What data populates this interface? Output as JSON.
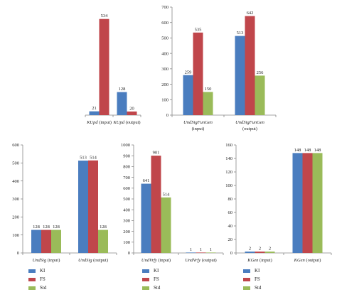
{
  "colors": {
    "KI": "#4a7dbf",
    "FS": "#c0464b",
    "Std": "#9abb59"
  },
  "legend_labels": [
    "KI",
    "FS",
    "Std"
  ],
  "chart_data": [
    {
      "type": "bar",
      "title": "",
      "ylim": [
        0,
        600
      ],
      "yticks": [],
      "show_y_axis": false,
      "categories": [
        {
          "parts": [
            {
              "t": "KUpd",
              "i": true
            },
            {
              "t": " (input)",
              "i": false
            }
          ]
        },
        {
          "parts": [
            {
              "t": "KUpd",
              "i": true
            },
            {
              "t": " (output)",
              "i": false
            }
          ]
        }
      ],
      "series": [
        {
          "name": "KI",
          "values": [
            21,
            128
          ]
        },
        {
          "name": "FS",
          "values": [
            534,
            20
          ]
        }
      ]
    },
    {
      "type": "bar",
      "title": "",
      "ylim": [
        0,
        700
      ],
      "yticks": [
        0,
        100,
        200,
        300,
        400,
        500,
        600,
        700
      ],
      "show_y_axis": true,
      "categories": [
        {
          "parts": [
            {
              "t": "UndSigFunGen",
              "i": true
            }
          ],
          "line2": "(input)"
        },
        {
          "parts": [
            {
              "t": "UndSigFunGen",
              "i": true
            }
          ],
          "line2": "(output)"
        }
      ],
      "series": [
        {
          "name": "KI",
          "values": [
            259,
            513
          ]
        },
        {
          "name": "FS",
          "values": [
            535,
            642
          ]
        },
        {
          "name": "Std",
          "values": [
            150,
            256
          ]
        }
      ]
    },
    {
      "type": "bar",
      "title": "",
      "ylim": [
        0,
        600
      ],
      "yticks": [
        0,
        100,
        200,
        300,
        400,
        500,
        600
      ],
      "show_y_axis": true,
      "categories": [
        {
          "parts": [
            {
              "t": "UndSig",
              "i": true
            },
            {
              "t": " (input)",
              "i": false
            }
          ]
        },
        {
          "parts": [
            {
              "t": "UndSig",
              "i": true
            },
            {
              "t": " (output)",
              "i": false
            }
          ]
        }
      ],
      "series": [
        {
          "name": "KI",
          "values": [
            128,
            513
          ]
        },
        {
          "name": "FS",
          "values": [
            128,
            514
          ]
        },
        {
          "name": "Std",
          "values": [
            128,
            128
          ]
        }
      ]
    },
    {
      "type": "bar",
      "title": "",
      "ylim": [
        0,
        1000
      ],
      "yticks": [
        0,
        100,
        200,
        300,
        400,
        500,
        600,
        700,
        800,
        900,
        1000
      ],
      "show_y_axis": true,
      "categories": [
        {
          "parts": [
            {
              "t": "UndVrfy",
              "i": true
            },
            {
              "t": " (input)",
              "i": false
            }
          ]
        },
        {
          "parts": [
            {
              "t": "UndVrfy",
              "i": true
            },
            {
              "t": " (output)",
              "i": false
            }
          ]
        }
      ],
      "series": [
        {
          "name": "KI",
          "values": [
            641,
            1
          ]
        },
        {
          "name": "FS",
          "values": [
            901,
            1
          ]
        },
        {
          "name": "Std",
          "values": [
            514,
            1
          ]
        }
      ]
    },
    {
      "type": "bar",
      "title": "",
      "ylim": [
        0,
        160
      ],
      "yticks": [
        0,
        20,
        40,
        60,
        80,
        100,
        120,
        140,
        160
      ],
      "show_y_axis": true,
      "categories": [
        {
          "parts": [
            {
              "t": "KGen",
              "i": true
            },
            {
              "t": " (input)",
              "i": false
            }
          ]
        },
        {
          "parts": [
            {
              "t": "KGen",
              "i": true
            },
            {
              "t": " (output)",
              "i": false
            }
          ]
        }
      ],
      "series": [
        {
          "name": "KI",
          "values": [
            2,
            148
          ]
        },
        {
          "name": "FS",
          "values": [
            2,
            148
          ]
        },
        {
          "name": "Std",
          "values": [
            2,
            148
          ]
        }
      ]
    }
  ]
}
